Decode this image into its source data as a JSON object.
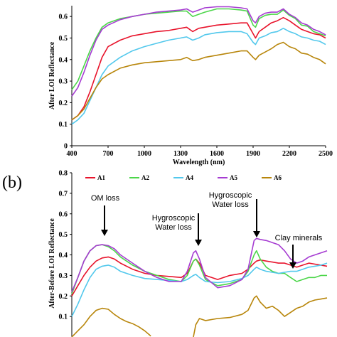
{
  "panel_label": "(b)",
  "colors": {
    "A1": "#e8142c",
    "A2": "#4cd64a",
    "A4": "#52c8ec",
    "A5": "#a63cd2",
    "A6": "#b8860b"
  },
  "chart_data": [
    {
      "type": "line",
      "title": "",
      "xlabel": "Wavelength (nm)",
      "ylabel": "After LOI Reflectance",
      "xlim": [
        400,
        2500
      ],
      "ylim": [
        0,
        0.65
      ],
      "grid": false,
      "x_ticks": [
        "400",
        "700",
        "1000",
        "1300",
        "1600",
        "1900",
        "2200",
        "2500"
      ],
      "y_ticks": [
        "0",
        "0.1",
        "0.2",
        "0.3",
        "0.4",
        "0.5",
        "0.6"
      ],
      "series": [
        {
          "name": "A1",
          "x": [
            400,
            450,
            500,
            550,
            600,
            650,
            700,
            800,
            900,
            1000,
            1100,
            1200,
            1300,
            1350,
            1400,
            1450,
            1500,
            1600,
            1700,
            1800,
            1850,
            1900,
            1920,
            1950,
            2000,
            2050,
            2100,
            2150,
            2200,
            2250,
            2300,
            2350,
            2400,
            2450,
            2500
          ],
          "y": [
            0.12,
            0.14,
            0.18,
            0.25,
            0.33,
            0.41,
            0.46,
            0.49,
            0.51,
            0.52,
            0.53,
            0.535,
            0.545,
            0.55,
            0.53,
            0.545,
            0.55,
            0.56,
            0.565,
            0.57,
            0.57,
            0.52,
            0.5,
            0.53,
            0.55,
            0.57,
            0.58,
            0.595,
            0.58,
            0.56,
            0.54,
            0.53,
            0.52,
            0.515,
            0.5
          ]
        },
        {
          "name": "A2",
          "x": [
            400,
            450,
            500,
            550,
            600,
            650,
            700,
            800,
            900,
            1000,
            1100,
            1200,
            1300,
            1350,
            1400,
            1450,
            1500,
            1600,
            1700,
            1800,
            1850,
            1900,
            1920,
            1950,
            2000,
            2050,
            2100,
            2150,
            2200,
            2250,
            2300,
            2350,
            2400,
            2450,
            2500
          ],
          "y": [
            0.26,
            0.3,
            0.37,
            0.44,
            0.5,
            0.55,
            0.57,
            0.59,
            0.6,
            0.61,
            0.615,
            0.62,
            0.625,
            0.625,
            0.6,
            0.61,
            0.62,
            0.635,
            0.635,
            0.63,
            0.625,
            0.56,
            0.55,
            0.59,
            0.605,
            0.61,
            0.61,
            0.63,
            0.605,
            0.59,
            0.56,
            0.555,
            0.53,
            0.52,
            0.51
          ]
        },
        {
          "name": "A4",
          "x": [
            400,
            450,
            500,
            550,
            600,
            650,
            700,
            800,
            900,
            1000,
            1100,
            1200,
            1300,
            1350,
            1400,
            1450,
            1500,
            1600,
            1700,
            1800,
            1850,
            1900,
            1920,
            1950,
            2000,
            2050,
            2100,
            2150,
            2200,
            2250,
            2300,
            2350,
            2400,
            2450,
            2500
          ],
          "y": [
            0.1,
            0.12,
            0.15,
            0.21,
            0.27,
            0.33,
            0.37,
            0.41,
            0.44,
            0.46,
            0.475,
            0.49,
            0.5,
            0.505,
            0.49,
            0.5,
            0.515,
            0.525,
            0.53,
            0.53,
            0.52,
            0.48,
            0.47,
            0.5,
            0.51,
            0.525,
            0.53,
            0.545,
            0.53,
            0.52,
            0.505,
            0.5,
            0.49,
            0.485,
            0.47
          ]
        },
        {
          "name": "A5",
          "x": [
            400,
            450,
            500,
            550,
            600,
            650,
            700,
            800,
            900,
            1000,
            1100,
            1200,
            1300,
            1350,
            1400,
            1450,
            1500,
            1600,
            1700,
            1800,
            1850,
            1900,
            1920,
            1950,
            2000,
            2050,
            2100,
            2150,
            2200,
            2250,
            2300,
            2350,
            2400,
            2450,
            2500
          ],
          "y": [
            0.23,
            0.27,
            0.34,
            0.42,
            0.49,
            0.54,
            0.56,
            0.585,
            0.6,
            0.61,
            0.62,
            0.625,
            0.63,
            0.635,
            0.62,
            0.63,
            0.64,
            0.645,
            0.645,
            0.64,
            0.635,
            0.58,
            0.57,
            0.6,
            0.615,
            0.62,
            0.62,
            0.635,
            0.61,
            0.595,
            0.57,
            0.56,
            0.54,
            0.53,
            0.515
          ]
        },
        {
          "name": "A6",
          "x": [
            400,
            450,
            500,
            550,
            600,
            650,
            700,
            800,
            900,
            1000,
            1100,
            1200,
            1300,
            1350,
            1400,
            1450,
            1500,
            1600,
            1700,
            1800,
            1850,
            1900,
            1920,
            1950,
            2000,
            2050,
            2100,
            2150,
            2200,
            2250,
            2300,
            2350,
            2400,
            2450,
            2500
          ],
          "y": [
            0.12,
            0.14,
            0.17,
            0.22,
            0.27,
            0.31,
            0.33,
            0.36,
            0.375,
            0.385,
            0.39,
            0.395,
            0.4,
            0.41,
            0.395,
            0.4,
            0.41,
            0.42,
            0.43,
            0.44,
            0.44,
            0.41,
            0.4,
            0.42,
            0.435,
            0.45,
            0.47,
            0.48,
            0.46,
            0.45,
            0.43,
            0.425,
            0.41,
            0.4,
            0.38
          ]
        }
      ]
    },
    {
      "type": "line",
      "title": "",
      "xlabel": "",
      "ylabel": "After-Before LOI Reflectance",
      "xlim": [
        400,
        2500
      ],
      "ylim": [
        0,
        0.8
      ],
      "grid": false,
      "legend_position": "top",
      "y_ticks": [
        "0",
        "0.1",
        "0.2",
        "0.3",
        "0.4",
        "0.5",
        "0.6",
        "0.7",
        "0.8"
      ],
      "annotations": [
        {
          "text": "OM loss",
          "x": 650,
          "y": 0.47
        },
        {
          "text": "Hygroscopic Water loss",
          "x": 1400,
          "y": 0.42
        },
        {
          "text": "Hygroscopic Water loss",
          "x": 1920,
          "y": 0.47
        },
        {
          "text": "Clay minerals",
          "x": 2230,
          "y": 0.33
        }
      ],
      "series": [
        {
          "name": "A1",
          "x": [
            400,
            450,
            500,
            550,
            600,
            650,
            700,
            750,
            800,
            900,
            1000,
            1100,
            1200,
            1300,
            1350,
            1400,
            1420,
            1450,
            1500,
            1600,
            1700,
            1800,
            1850,
            1900,
            1920,
            1950,
            2000,
            2050,
            2100,
            2150,
            2200,
            2250,
            2300,
            2350,
            2400,
            2450,
            2500
          ],
          "y": [
            0.2,
            0.25,
            0.3,
            0.34,
            0.37,
            0.385,
            0.39,
            0.38,
            0.36,
            0.33,
            0.31,
            0.3,
            0.295,
            0.29,
            0.31,
            0.37,
            0.38,
            0.36,
            0.3,
            0.28,
            0.3,
            0.31,
            0.33,
            0.36,
            0.37,
            0.375,
            0.37,
            0.365,
            0.36,
            0.36,
            0.35,
            0.34,
            0.35,
            0.36,
            0.355,
            0.35,
            0.345
          ]
        },
        {
          "name": "A2",
          "x": [
            400,
            450,
            500,
            550,
            600,
            650,
            700,
            750,
            800,
            900,
            1000,
            1100,
            1200,
            1300,
            1350,
            1400,
            1420,
            1450,
            1500,
            1600,
            1700,
            1800,
            1850,
            1900,
            1920,
            1950,
            2000,
            2050,
            2100,
            2150,
            2200,
            2250,
            2300,
            2350,
            2400,
            2450,
            2500
          ],
          "y": [
            0.21,
            0.29,
            0.37,
            0.42,
            0.445,
            0.45,
            0.44,
            0.42,
            0.39,
            0.35,
            0.32,
            0.3,
            0.28,
            0.27,
            0.3,
            0.37,
            0.38,
            0.35,
            0.28,
            0.25,
            0.26,
            0.28,
            0.32,
            0.4,
            0.42,
            0.38,
            0.34,
            0.32,
            0.31,
            0.31,
            0.29,
            0.27,
            0.28,
            0.29,
            0.29,
            0.3,
            0.3
          ]
        },
        {
          "name": "A4",
          "x": [
            400,
            450,
            500,
            550,
            600,
            650,
            700,
            750,
            800,
            900,
            1000,
            1100,
            1200,
            1300,
            1350,
            1400,
            1420,
            1450,
            1500,
            1600,
            1700,
            1800,
            1850,
            1900,
            1920,
            1950,
            2000,
            2050,
            2100,
            2150,
            2200,
            2250,
            2300,
            2350,
            2400,
            2450,
            2500
          ],
          "y": [
            0.1,
            0.16,
            0.23,
            0.29,
            0.33,
            0.345,
            0.35,
            0.34,
            0.32,
            0.3,
            0.285,
            0.28,
            0.275,
            0.27,
            0.28,
            0.3,
            0.305,
            0.29,
            0.27,
            0.265,
            0.27,
            0.285,
            0.3,
            0.33,
            0.34,
            0.33,
            0.32,
            0.315,
            0.31,
            0.315,
            0.32,
            0.32,
            0.33,
            0.34,
            0.345,
            0.35,
            0.36
          ]
        },
        {
          "name": "A5",
          "x": [
            400,
            450,
            500,
            550,
            600,
            650,
            700,
            750,
            800,
            900,
            1000,
            1100,
            1200,
            1300,
            1350,
            1400,
            1420,
            1450,
            1500,
            1600,
            1700,
            1800,
            1850,
            1900,
            1920,
            1950,
            2000,
            2050,
            2100,
            2150,
            2200,
            2250,
            2300,
            2350,
            2400,
            2450,
            2500
          ],
          "y": [
            0.22,
            0.29,
            0.37,
            0.42,
            0.445,
            0.45,
            0.445,
            0.43,
            0.4,
            0.36,
            0.32,
            0.29,
            0.27,
            0.27,
            0.32,
            0.41,
            0.42,
            0.38,
            0.29,
            0.24,
            0.25,
            0.28,
            0.33,
            0.47,
            0.48,
            0.475,
            0.47,
            0.46,
            0.45,
            0.42,
            0.38,
            0.36,
            0.37,
            0.39,
            0.4,
            0.41,
            0.42
          ]
        },
        {
          "name": "A6",
          "x": [
            400,
            450,
            500,
            550,
            600,
            650,
            700,
            750,
            800,
            850,
            900,
            950,
            1000,
            1050
          ],
          "y": [
            0.0,
            0.03,
            0.06,
            0.1,
            0.13,
            0.14,
            0.135,
            0.11,
            0.09,
            0.075,
            0.065,
            0.05,
            0.03,
            0.005
          ]
        },
        {
          "name": "A6",
          "x": [
            1400,
            1420,
            1450,
            1500,
            1600,
            1700,
            1800,
            1850,
            1900,
            1920,
            1950,
            2000,
            2050,
            2100,
            2150,
            2200,
            2250,
            2300,
            2350,
            2400,
            2450,
            2500
          ],
          "y": [
            0.0,
            0.06,
            0.09,
            0.08,
            0.09,
            0.095,
            0.11,
            0.13,
            0.19,
            0.2,
            0.17,
            0.14,
            0.15,
            0.13,
            0.1,
            0.12,
            0.14,
            0.15,
            0.17,
            0.18,
            0.185,
            0.19
          ]
        }
      ]
    }
  ]
}
